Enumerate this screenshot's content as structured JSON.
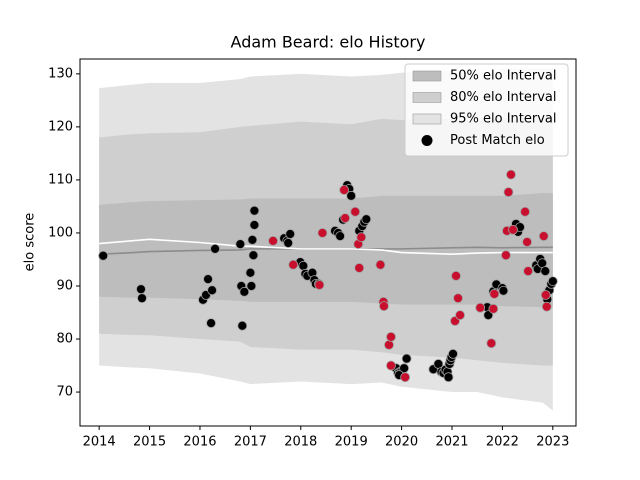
{
  "chart_data": {
    "type": "band_scatter",
    "title": "Adam Beard: elo History",
    "y_label": "elo score",
    "xlim": [
      2013.62,
      2023.46
    ],
    "xticks": [
      2014,
      2015,
      2016,
      2017,
      2018,
      2019,
      2020,
      2021,
      2022,
      2023
    ],
    "ylim": [
      63.6,
      132.8
    ],
    "yticks": [
      70,
      80,
      90,
      100,
      110,
      120,
      130
    ],
    "legend_position": "upper right",
    "bands": [
      {
        "name": "95% elo Interval",
        "color": "#e3e3e3",
        "x": [
          2014,
          2014.5,
          2015,
          2016,
          2016.8,
          2017,
          2018,
          2019,
          2019.6,
          2020,
          2021,
          2021.5,
          2022,
          2022.8,
          2023
        ],
        "upper": [
          127.3,
          127.8,
          128.3,
          128.3,
          129,
          129.5,
          130,
          129.5,
          129.8,
          130.2,
          130.5,
          129,
          131,
          131,
          131
        ],
        "lower": [
          75,
          74.7,
          74.5,
          73.5,
          72,
          71.5,
          72,
          71.5,
          71.8,
          71,
          70,
          70,
          69,
          68,
          66.5
        ]
      },
      {
        "name": "80% elo Interval",
        "color": "#cfcfcf",
        "x": [
          2014,
          2014.5,
          2015,
          2016,
          2016.8,
          2017,
          2018,
          2019,
          2019.6,
          2020,
          2021,
          2021.5,
          2022,
          2022.8,
          2023
        ],
        "upper": [
          118,
          118.5,
          118.8,
          119,
          120,
          120.2,
          121,
          120.5,
          121.5,
          121.3,
          121.5,
          121,
          121.6,
          121.6,
          121.8
        ],
        "lower": [
          81,
          80.8,
          80.7,
          80,
          79.5,
          78.5,
          78,
          78,
          77.5,
          77,
          76.5,
          76,
          75.5,
          75,
          75
        ]
      },
      {
        "name": "50% elo Interval",
        "color": "#bdbdbd",
        "x": [
          2014,
          2014.5,
          2015,
          2016,
          2016.8,
          2017,
          2018,
          2019,
          2019.6,
          2020,
          2021,
          2021.5,
          2022,
          2022.8,
          2023
        ],
        "upper": [
          105.3,
          105.7,
          106,
          106.2,
          106.3,
          106.5,
          106.5,
          106.5,
          107,
          107,
          107,
          107,
          107,
          107.5,
          107.5
        ],
        "lower": [
          88,
          87.8,
          87.8,
          87.5,
          87.2,
          87,
          87,
          87,
          86.7,
          86.5,
          86.5,
          86.5,
          86.2,
          86,
          86
        ]
      }
    ],
    "lines": [
      {
        "color": "#8c8c8c",
        "x": [
          2014,
          2014.5,
          2015,
          2016,
          2016.8,
          2017,
          2018,
          2019,
          2019.6,
          2020,
          2021,
          2021.5,
          2022,
          2022.8,
          2023
        ],
        "values": [
          96,
          96.2,
          96.5,
          96.7,
          96.8,
          97,
          97,
          97,
          97,
          97,
          97.2,
          97.3,
          97.2,
          97.3,
          97.3
        ]
      },
      {
        "color": "#ffffff",
        "x": [
          2014,
          2014.5,
          2015,
          2016,
          2016.8,
          2017,
          2018,
          2019,
          2019.6,
          2020,
          2021,
          2021.5,
          2022,
          2022.8,
          2023
        ],
        "values": [
          98,
          98.4,
          98.8,
          98.2,
          97.5,
          97.5,
          97,
          97,
          96.8,
          96.3,
          96,
          96.2,
          96.3,
          96.3,
          96.3
        ]
      }
    ],
    "points": [
      {
        "name": "Post Match elo",
        "color": "#000000",
        "x": [
          2014.08,
          2014.83,
          2014.85,
          2016.06,
          2016.12,
          2016.16,
          2016.24,
          2016.22,
          2016.3,
          2016.8,
          2016.82,
          2016.84,
          2016.88,
          2017.0,
          2017.02,
          2017.06,
          2017.04,
          2017.08,
          2017.08,
          2017.67,
          2017.73,
          2017.79,
          2017.75,
          2017.99,
          2018.05,
          2018.09,
          2018.13,
          2018.23,
          2018.27,
          2018.3,
          2018.36,
          2018.68,
          2018.74,
          2018.78,
          2018.84,
          2018.92,
          2018.96,
          2019.0,
          2019.16,
          2019.22,
          2019.26,
          2019.3,
          2019.89,
          2019.93,
          2019.97,
          2020.01,
          2020.05,
          2020.1,
          2019.95,
          2020.63,
          2020.73,
          2020.79,
          2020.83,
          2020.87,
          2020.91,
          2020.95,
          2020.97,
          2020.99,
          2021.02,
          2020.93,
          2021.7,
          2021.72,
          2021.82,
          2021.88,
          2022.0,
          2022.02,
          2022.21,
          2022.27,
          2022.31,
          2022.35,
          2022.67,
          2022.7,
          2022.75,
          2022.79,
          2022.85,
          2022.89,
          2022.93,
          2022.97,
          2023.0
        ],
        "values": [
          95.7,
          89.4,
          87.7,
          87.4,
          88.3,
          91.3,
          89.2,
          83.0,
          97.0,
          97.9,
          90.0,
          82.5,
          88.9,
          92.5,
          90.0,
          95.8,
          98.7,
          104.2,
          101.5,
          99.0,
          98.5,
          99.8,
          98.1,
          94.5,
          93.8,
          92.3,
          91.9,
          92.5,
          91.1,
          90.4,
          90.4,
          100.4,
          100.0,
          99.4,
          102.5,
          109.0,
          108.3,
          107.0,
          100.4,
          101.3,
          102.1,
          102.6,
          74.5,
          73.6,
          73.8,
          74.0,
          74.5,
          76.3,
          73.2,
          74.3,
          75.3,
          73.8,
          73.6,
          74.2,
          73.8,
          75.3,
          76.0,
          76.6,
          77.2,
          72.8,
          86.0,
          84.5,
          89.0,
          90.3,
          89.6,
          89.1,
          100.7,
          101.7,
          100.2,
          101.1,
          93.9,
          93.2,
          95.1,
          94.3,
          92.8,
          87.5,
          89.2,
          90.4,
          90.9
        ]
      },
      {
        "color": "#c8102e",
        "x": [
          2017.45,
          2017.85,
          2018.43,
          2018.37,
          2018.86,
          2018.88,
          2019.08,
          2019.16,
          2019.14,
          2019.2,
          2019.58,
          2019.64,
          2019.65,
          2019.75,
          2019.79,
          2019.79,
          2020.07,
          2021.08,
          2021.12,
          2021.06,
          2021.16,
          2021.56,
          2021.78,
          2021.84,
          2021.82,
          2022.07,
          2022.09,
          2022.12,
          2022.17,
          2022.21,
          2022.45,
          2022.49,
          2022.51,
          2022.82,
          2022.86,
          2022.88
        ],
        "values": [
          98.5,
          94.0,
          100.0,
          90.2,
          108.1,
          102.8,
          104.0,
          93.4,
          97.9,
          99.2,
          94.0,
          87.0,
          86.2,
          78.9,
          80.4,
          75.0,
          72.8,
          91.9,
          87.7,
          83.4,
          84.5,
          85.9,
          79.2,
          88.5,
          85.7,
          95.8,
          100.4,
          107.7,
          111.0,
          100.6,
          104.0,
          98.3,
          92.8,
          99.4,
          88.3,
          86.1
        ]
      }
    ]
  }
}
